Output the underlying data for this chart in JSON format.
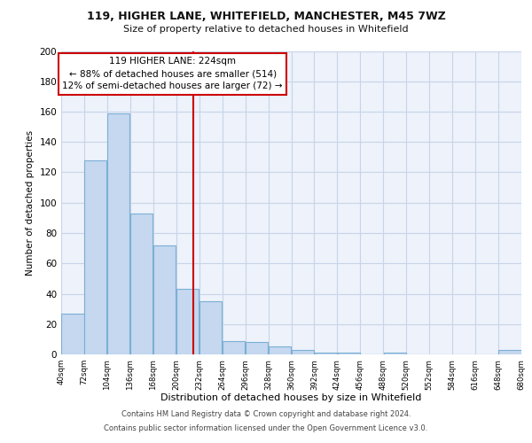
{
  "title1": "119, HIGHER LANE, WHITEFIELD, MANCHESTER, M45 7WZ",
  "title2": "Size of property relative to detached houses in Whitefield",
  "xlabel": "Distribution of detached houses by size in Whitefield",
  "ylabel": "Number of detached properties",
  "bar_edges": [
    40,
    72,
    104,
    136,
    168,
    200,
    232,
    264,
    296,
    328,
    360,
    392,
    424,
    456,
    488,
    520,
    552,
    584,
    616,
    648,
    680
  ],
  "bar_heights": [
    27,
    128,
    159,
    93,
    72,
    43,
    35,
    9,
    8,
    5,
    3,
    1,
    1,
    0,
    1,
    0,
    0,
    0,
    0,
    3
  ],
  "bar_color": "#c5d8f0",
  "bar_edge_color": "#7bafd4",
  "property_line_x": 224,
  "property_line_color": "#cc0000",
  "ann_line1": "119 HIGHER LANE: 224sqm",
  "ann_line2": "← 88% of detached houses are smaller (514)",
  "ann_line3": "12% of semi-detached houses are larger (72) →",
  "ylim": [
    0,
    200
  ],
  "yticks": [
    0,
    20,
    40,
    60,
    80,
    100,
    120,
    140,
    160,
    180,
    200
  ],
  "tick_labels": [
    "40sqm",
    "72sqm",
    "104sqm",
    "136sqm",
    "168sqm",
    "200sqm",
    "232sqm",
    "264sqm",
    "296sqm",
    "328sqm",
    "360sqm",
    "392sqm",
    "424sqm",
    "456sqm",
    "488sqm",
    "520sqm",
    "552sqm",
    "584sqm",
    "616sqm",
    "648sqm",
    "680sqm"
  ],
  "footer_line1": "Contains HM Land Registry data © Crown copyright and database right 2024.",
  "footer_line2": "Contains public sector information licensed under the Open Government Licence v3.0.",
  "bg_color": "#edf2fb",
  "grid_color": "#c8d4e8"
}
